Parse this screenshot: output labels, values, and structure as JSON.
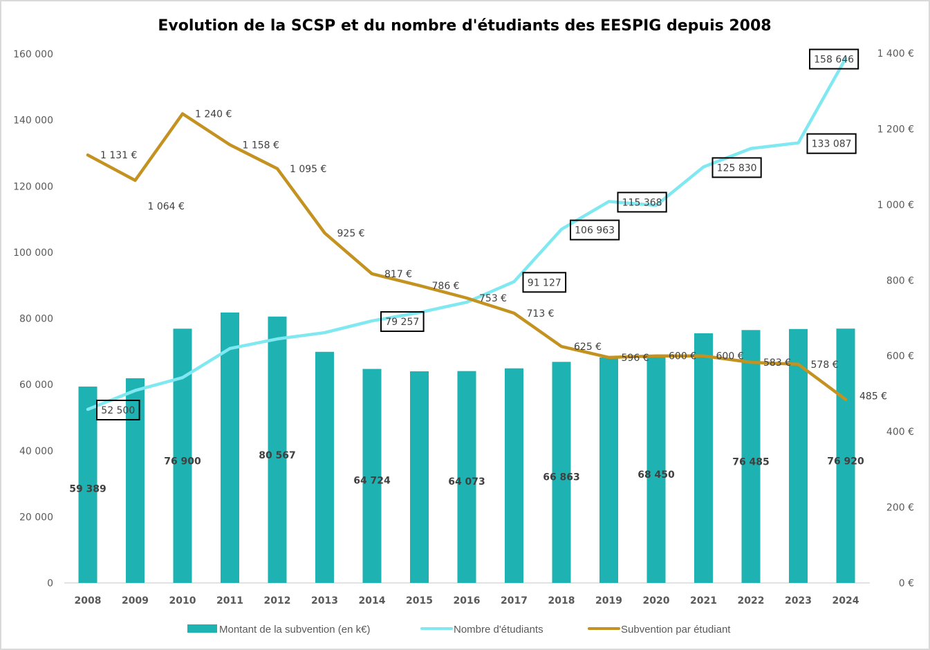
{
  "chart_data": {
    "type": "bar+line",
    "title": "Evolution de la SCSP et du nombre d'étudiants des EESPIG depuis 2008",
    "categories": [
      "2008",
      "2009",
      "2010",
      "2011",
      "2012",
      "2013",
      "2014",
      "2015",
      "2016",
      "2017",
      "2018",
      "2019",
      "2020",
      "2021",
      "2022",
      "2023",
      "2024"
    ],
    "left_axis": {
      "ylim": [
        0,
        160000
      ],
      "ticks": [
        0,
        20000,
        40000,
        60000,
        80000,
        100000,
        120000,
        140000,
        160000
      ],
      "tick_labels": [
        "0",
        "20 000",
        "40 000",
        "60 000",
        "80 000",
        "100 000",
        "120 000",
        "140 000",
        "160 000"
      ]
    },
    "right_axis": {
      "ylim": [
        0,
        1400
      ],
      "ticks": [
        0,
        200,
        400,
        600,
        800,
        1000,
        1200,
        1400
      ],
      "tick_labels": [
        "0 €",
        "200 €",
        "400 €",
        "600 €",
        "800 €",
        "1 000 €",
        "1 200 €",
        "1 400 €"
      ]
    },
    "grid": false,
    "legend_position": "bottom",
    "series": [
      {
        "name": "Montant de la subvention (en k€)",
        "type": "bar",
        "axis": "left",
        "color": "#1fb2b2",
        "values": [
          59389,
          61900,
          76900,
          81800,
          80567,
          69900,
          64724,
          64000,
          64073,
          64900,
          66863,
          68200,
          68450,
          75500,
          76485,
          76800,
          76920
        ],
        "labels": [
          "59 389",
          null,
          "76 900",
          null,
          "80 567",
          null,
          "64 724",
          null,
          "64 073",
          null,
          "66 863",
          null,
          "68 450",
          null,
          "76 485",
          null,
          "76 920"
        ]
      },
      {
        "name": "Nombre d'étudiants",
        "type": "line",
        "axis": "left",
        "color": "#7fe8f0",
        "values": [
          52500,
          58200,
          62100,
          70900,
          73800,
          75700,
          79257,
          81800,
          84900,
          91127,
          106963,
          115368,
          114200,
          125830,
          131400,
          133087,
          158646
        ],
        "labels": [
          "52 500",
          null,
          null,
          null,
          null,
          null,
          "79 257",
          null,
          null,
          "91 127",
          "106 963",
          "115 368",
          null,
          "125 830",
          null,
          "133 087",
          "158 646"
        ]
      },
      {
        "name": "Subvention par étudiant",
        "type": "line",
        "axis": "right",
        "color": "#c39220",
        "values": [
          1131,
          1064,
          1240,
          1158,
          1095,
          925,
          817,
          786,
          753,
          713,
          625,
          596,
          600,
          600,
          583,
          578,
          485
        ],
        "labels": [
          "1 131 €",
          "1 064 €",
          "1 240 €",
          "1 158 €",
          "1 095 €",
          "925 €",
          "817 €",
          "786 €",
          "753 €",
          "713 €",
          "625 €",
          "596 €",
          "600 €",
          "600 €",
          "583 €",
          "578 €",
          "485 €"
        ]
      }
    ]
  }
}
